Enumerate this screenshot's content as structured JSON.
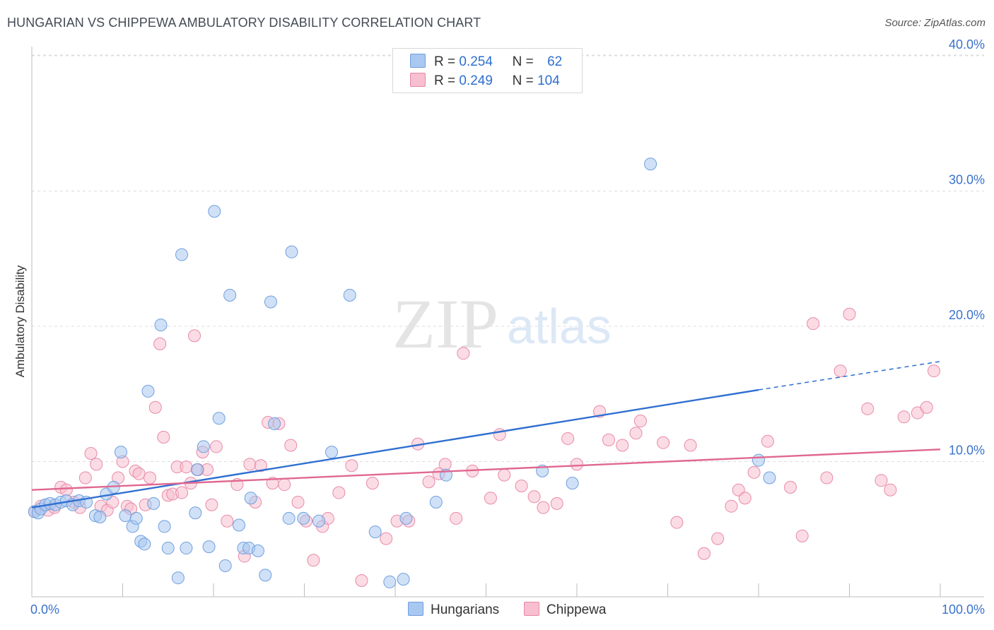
{
  "title": "HUNGARIAN VS CHIPPEWA AMBULATORY DISABILITY CORRELATION CHART",
  "source": "Source: ZipAtlas.com",
  "watermark": {
    "zip": "ZIP",
    "atlas": "atlas"
  },
  "legend": {
    "rows": [
      {
        "r_label": "R =",
        "r_value": "0.254",
        "n_label": "N =",
        "n_value": "62",
        "color": "#a9c8f0",
        "border": "#6f9fde"
      },
      {
        "r_label": "R =",
        "r_value": "0.249",
        "n_label": "N =",
        "n_value": "104",
        "color": "#f7bfd0",
        "border": "#e88aa8"
      }
    ]
  },
  "bottom_legend": [
    {
      "label": "Hungarians",
      "color": "#a9c8f0",
      "border": "#6f9fde"
    },
    {
      "label": "Chippewa",
      "color": "#f7bfd0",
      "border": "#e88aa8"
    }
  ],
  "chart_data": {
    "type": "scatter",
    "title": "HUNGARIAN VS CHIPPEWA AMBULATORY DISABILITY CORRELATION CHART",
    "xlabel": "",
    "ylabel": "Ambulatory Disability",
    "xlim": [
      0,
      100
    ],
    "ylim": [
      0,
      41.5
    ],
    "x_tick_labels": [
      "0.0%",
      "100.0%"
    ],
    "y_ticks": [
      10,
      20,
      30,
      40
    ],
    "y_tick_labels": [
      "10.0%",
      "20.0%",
      "30.0%",
      "40.0%"
    ],
    "grid": true,
    "series": [
      {
        "name": "Hungarians",
        "color": "#6f9fde",
        "fill": "#a9c8f0",
        "line_color": "#2f6fd0",
        "trend": {
          "x0": 0,
          "y0": 6.6,
          "x1": 80,
          "y1": 15.3,
          "dash_to_x": 100,
          "dash_to_y": 17.4
        },
        "points": [
          [
            0.3,
            6.3
          ],
          [
            0.7,
            6.2
          ],
          [
            1.0,
            6.5
          ],
          [
            1.5,
            6.8
          ],
          [
            2.0,
            6.9
          ],
          [
            2.6,
            6.8
          ],
          [
            3.2,
            7.0
          ],
          [
            3.8,
            7.1
          ],
          [
            4.5,
            6.8
          ],
          [
            5.2,
            7.1
          ],
          [
            6.0,
            7.0
          ],
          [
            7.0,
            6.0
          ],
          [
            7.5,
            5.9
          ],
          [
            8.2,
            7.6
          ],
          [
            9.0,
            8.1
          ],
          [
            9.8,
            10.7
          ],
          [
            10.3,
            6.0
          ],
          [
            11.1,
            5.2
          ],
          [
            11.5,
            5.8
          ],
          [
            12.0,
            4.1
          ],
          [
            12.4,
            3.9
          ],
          [
            12.8,
            15.2
          ],
          [
            13.4,
            6.9
          ],
          [
            14.2,
            20.1
          ],
          [
            14.6,
            5.2
          ],
          [
            15.0,
            3.6
          ],
          [
            16.1,
            1.4
          ],
          [
            16.5,
            25.3
          ],
          [
            17.0,
            3.6
          ],
          [
            18.0,
            6.2
          ],
          [
            18.2,
            9.4
          ],
          [
            18.9,
            11.1
          ],
          [
            19.5,
            3.7
          ],
          [
            20.1,
            28.5
          ],
          [
            20.6,
            13.2
          ],
          [
            21.3,
            2.3
          ],
          [
            21.8,
            22.3
          ],
          [
            22.8,
            5.3
          ],
          [
            23.3,
            3.6
          ],
          [
            23.9,
            3.6
          ],
          [
            24.1,
            7.3
          ],
          [
            24.9,
            3.4
          ],
          [
            25.7,
            1.6
          ],
          [
            26.3,
            21.8
          ],
          [
            26.7,
            12.8
          ],
          [
            28.3,
            5.8
          ],
          [
            28.6,
            25.5
          ],
          [
            29.9,
            5.8
          ],
          [
            31.6,
            5.6
          ],
          [
            33.0,
            10.7
          ],
          [
            35.0,
            22.3
          ],
          [
            37.8,
            4.8
          ],
          [
            39.4,
            1.1
          ],
          [
            40.9,
            1.3
          ],
          [
            41.2,
            5.8
          ],
          [
            44.5,
            7.0
          ],
          [
            45.6,
            9.0
          ],
          [
            56.2,
            9.3
          ],
          [
            59.5,
            8.4
          ],
          [
            68.1,
            32.0
          ],
          [
            80.0,
            10.1
          ],
          [
            81.2,
            8.8
          ]
        ]
      },
      {
        "name": "Chippewa",
        "color": "#e88aa8",
        "fill": "#f7bfd0",
        "line_color": "#e06890",
        "trend": {
          "x0": 0,
          "y0": 7.9,
          "x1": 100,
          "y1": 10.9
        },
        "points": [
          [
            0.3,
            6.3
          ],
          [
            1.0,
            6.7
          ],
          [
            1.8,
            6.4
          ],
          [
            2.5,
            6.6
          ],
          [
            3.2,
            8.1
          ],
          [
            3.8,
            7.9
          ],
          [
            4.6,
            7.0
          ],
          [
            5.3,
            6.6
          ],
          [
            5.9,
            8.8
          ],
          [
            6.5,
            10.6
          ],
          [
            7.1,
            9.8
          ],
          [
            7.6,
            6.7
          ],
          [
            8.3,
            6.4
          ],
          [
            8.9,
            7.0
          ],
          [
            9.5,
            8.8
          ],
          [
            10.0,
            10.0
          ],
          [
            10.5,
            6.7
          ],
          [
            10.9,
            6.5
          ],
          [
            11.4,
            9.3
          ],
          [
            11.8,
            9.1
          ],
          [
            12.5,
            6.8
          ],
          [
            13.0,
            8.8
          ],
          [
            13.6,
            14.0
          ],
          [
            14.1,
            18.7
          ],
          [
            14.5,
            11.8
          ],
          [
            15.0,
            7.5
          ],
          [
            15.5,
            7.6
          ],
          [
            16.0,
            9.6
          ],
          [
            16.5,
            7.7
          ],
          [
            17.0,
            9.6
          ],
          [
            17.5,
            8.4
          ],
          [
            17.9,
            19.3
          ],
          [
            18.3,
            9.4
          ],
          [
            18.8,
            10.7
          ],
          [
            19.3,
            9.4
          ],
          [
            19.8,
            6.8
          ],
          [
            20.3,
            11.1
          ],
          [
            21.5,
            5.6
          ],
          [
            22.6,
            8.3
          ],
          [
            23.4,
            3.0
          ],
          [
            24.0,
            9.8
          ],
          [
            24.6,
            7.0
          ],
          [
            25.2,
            9.7
          ],
          [
            26.0,
            12.9
          ],
          [
            26.5,
            8.4
          ],
          [
            27.2,
            12.8
          ],
          [
            27.8,
            8.3
          ],
          [
            28.5,
            11.2
          ],
          [
            29.3,
            7.0
          ],
          [
            30.2,
            5.6
          ],
          [
            31.0,
            2.7
          ],
          [
            32.0,
            5.2
          ],
          [
            32.6,
            5.8
          ],
          [
            33.8,
            7.7
          ],
          [
            35.2,
            9.7
          ],
          [
            36.3,
            1.2
          ],
          [
            37.5,
            8.4
          ],
          [
            39.0,
            4.3
          ],
          [
            40.2,
            5.6
          ],
          [
            41.5,
            5.6
          ],
          [
            42.5,
            11.3
          ],
          [
            43.7,
            8.5
          ],
          [
            44.8,
            9.1
          ],
          [
            45.5,
            9.8
          ],
          [
            46.7,
            5.8
          ],
          [
            47.5,
            18.0
          ],
          [
            48.5,
            9.3
          ],
          [
            50.5,
            7.3
          ],
          [
            51.5,
            12.0
          ],
          [
            52.0,
            9.0
          ],
          [
            53.9,
            8.2
          ],
          [
            55.3,
            7.4
          ],
          [
            56.3,
            6.6
          ],
          [
            57.8,
            6.9
          ],
          [
            59.0,
            11.7
          ],
          [
            60.0,
            9.8
          ],
          [
            62.5,
            13.7
          ],
          [
            63.5,
            11.6
          ],
          [
            65.0,
            11.2
          ],
          [
            66.5,
            12.1
          ],
          [
            67.0,
            13.0
          ],
          [
            69.5,
            11.4
          ],
          [
            71.0,
            5.5
          ],
          [
            72.5,
            11.2
          ],
          [
            74.0,
            3.2
          ],
          [
            75.5,
            4.3
          ],
          [
            77.0,
            6.7
          ],
          [
            77.8,
            7.9
          ],
          [
            78.5,
            7.3
          ],
          [
            79.5,
            9.2
          ],
          [
            81.0,
            11.5
          ],
          [
            83.5,
            8.1
          ],
          [
            84.8,
            4.5
          ],
          [
            86.0,
            20.2
          ],
          [
            87.5,
            8.8
          ],
          [
            89.0,
            16.7
          ],
          [
            90.0,
            20.9
          ],
          [
            92.0,
            13.9
          ],
          [
            93.5,
            8.6
          ],
          [
            94.5,
            7.9
          ],
          [
            96.0,
            13.3
          ],
          [
            97.5,
            13.6
          ],
          [
            98.5,
            14.0
          ],
          [
            99.3,
            16.7
          ]
        ]
      }
    ]
  }
}
